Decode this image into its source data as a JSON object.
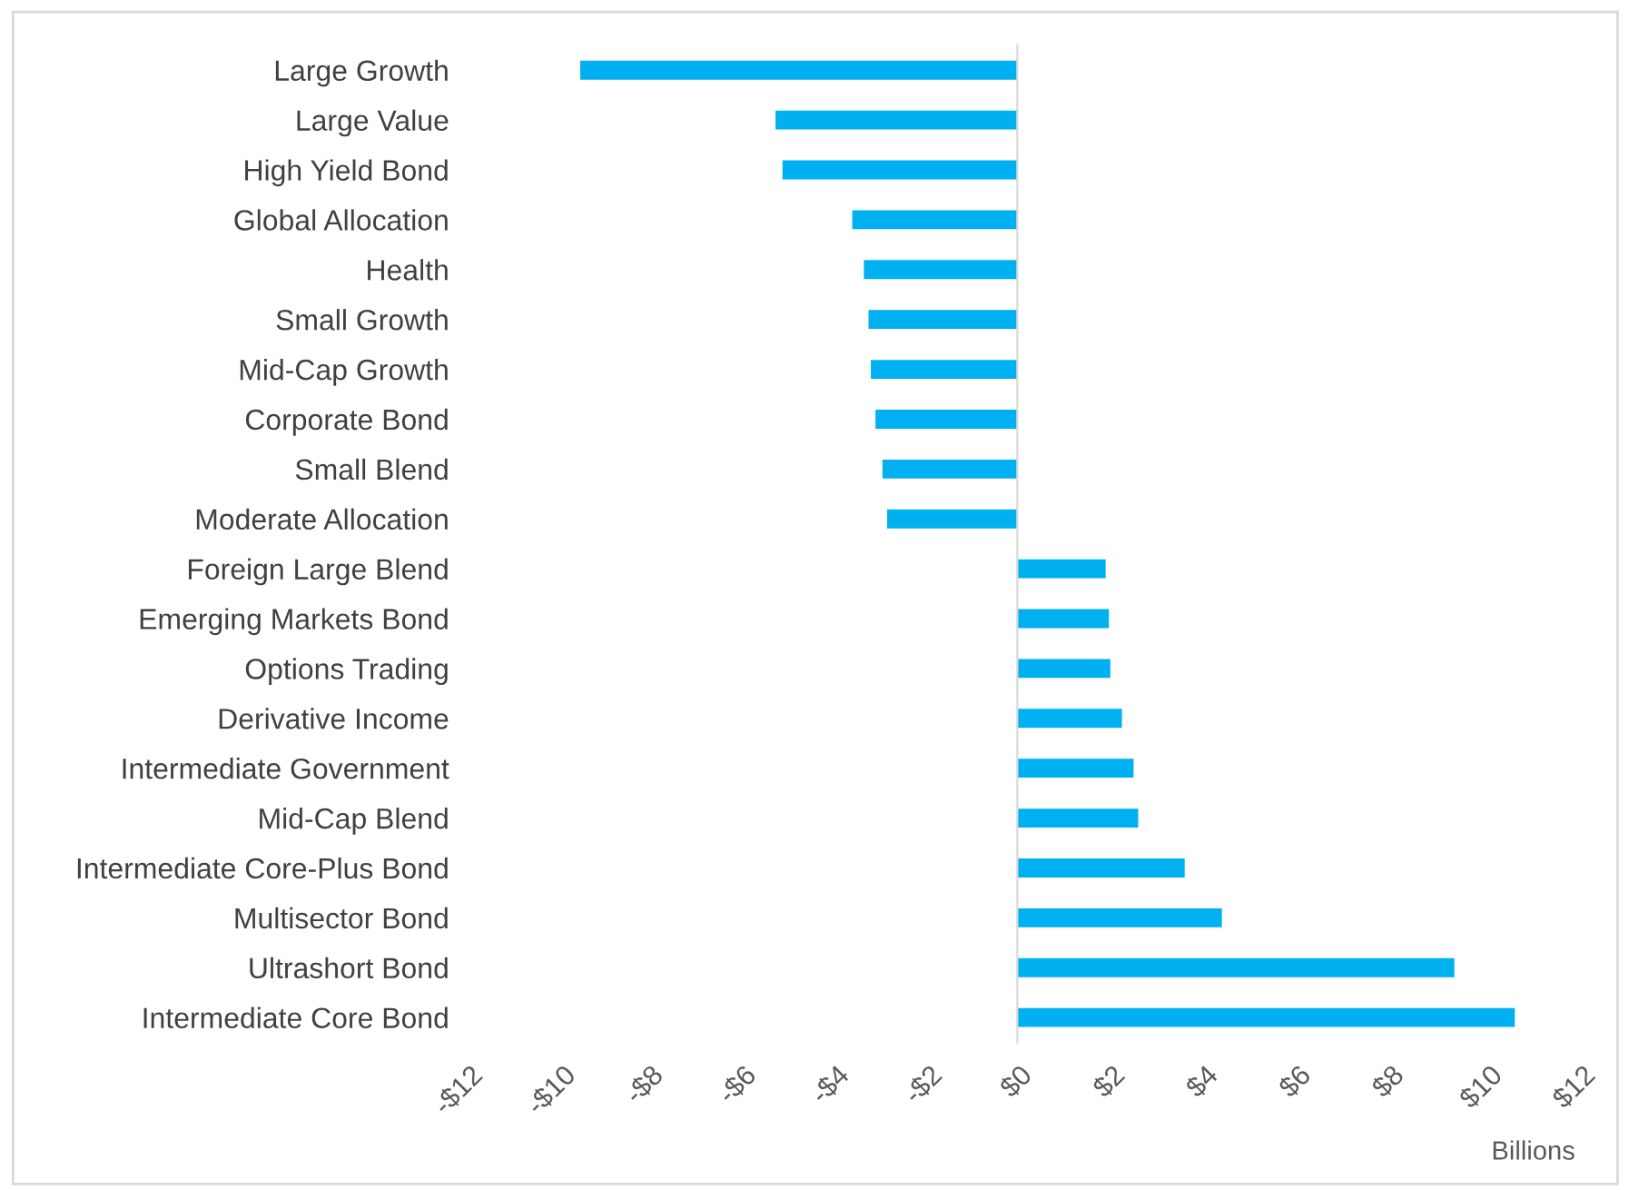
{
  "chart_data": {
    "type": "bar",
    "orientation": "horizontal",
    "xlabel": "Billions",
    "categories": [
      "Large Growth",
      "Large Value",
      "High Yield Bond",
      "Global Allocation",
      "Health",
      "Small Growth",
      "Mid-Cap Growth",
      "Corporate Bond",
      "Small Blend",
      "Moderate Allocation",
      "Foreign Large Blend",
      "Emerging Markets Bond",
      "Options Trading",
      "Derivative Income",
      "Intermediate Government",
      "Mid-Cap Blend",
      "Intermediate Core-Plus Bond",
      "Multisector Bond",
      "Ultrashort Bond",
      "Intermediate Core Bond"
    ],
    "values": [
      -9.4,
      -5.2,
      -5.05,
      -3.55,
      -3.3,
      -3.2,
      -3.15,
      -3.05,
      -2.9,
      -2.8,
      1.9,
      1.97,
      2.0,
      2.25,
      2.5,
      2.6,
      3.6,
      4.4,
      9.4,
      10.7
    ],
    "color": "#00b0f0",
    "xlim": [
      -12,
      12
    ],
    "xticks": [
      {
        "value": -12,
        "label": "-$12"
      },
      {
        "value": -10,
        "label": "-$10"
      },
      {
        "value": -8,
        "label": "-$8"
      },
      {
        "value": -6,
        "label": "-$6"
      },
      {
        "value": -4,
        "label": "-$4"
      },
      {
        "value": -2,
        "label": "-$2"
      },
      {
        "value": 0,
        "label": "$0"
      },
      {
        "value": 2,
        "label": "$2"
      },
      {
        "value": 4,
        "label": "$4"
      },
      {
        "value": 6,
        "label": "$6"
      },
      {
        "value": 8,
        "label": "$8"
      },
      {
        "value": 10,
        "label": "$10"
      },
      {
        "value": 12,
        "label": "$12"
      }
    ],
    "legend": false
  }
}
